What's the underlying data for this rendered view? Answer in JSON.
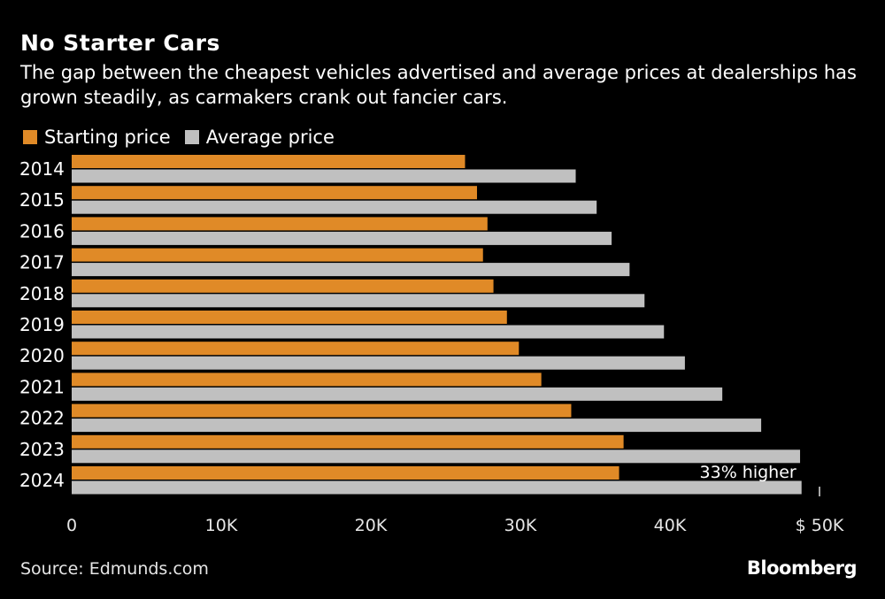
{
  "chart_data": {
    "type": "bar",
    "orientation": "horizontal",
    "title": "No Starter Cars",
    "subtitle": "The gap between the cheapest vehicles advertised and average prices at dealerships has grown steadily, as carmakers crank out fancier cars.",
    "categories": [
      "2014",
      "2015",
      "2016",
      "2017",
      "2018",
      "2019",
      "2020",
      "2021",
      "2022",
      "2023",
      "2024"
    ],
    "series": [
      {
        "name": "Starting price",
        "color": "#e08a27",
        "values": [
          26300,
          27100,
          27800,
          27500,
          28200,
          29100,
          29900,
          31400,
          33400,
          36900,
          36600
        ]
      },
      {
        "name": "Average price",
        "color": "#c0c0c0",
        "values": [
          33700,
          35100,
          36100,
          37300,
          38300,
          39600,
          41000,
          43500,
          46100,
          48700,
          48800
        ]
      }
    ],
    "xlim": [
      0,
      50000
    ],
    "x_ticks": [
      0,
      10000,
      20000,
      30000,
      40000,
      50000
    ],
    "x_tick_labels": [
      "0",
      "10K",
      "20K",
      "30K",
      "40K",
      "$ 50K"
    ],
    "annotation": "33% higher",
    "legend_position": "top-left",
    "grid": false
  },
  "source": "Source: Edmunds.com",
  "logo": "Bloomberg"
}
